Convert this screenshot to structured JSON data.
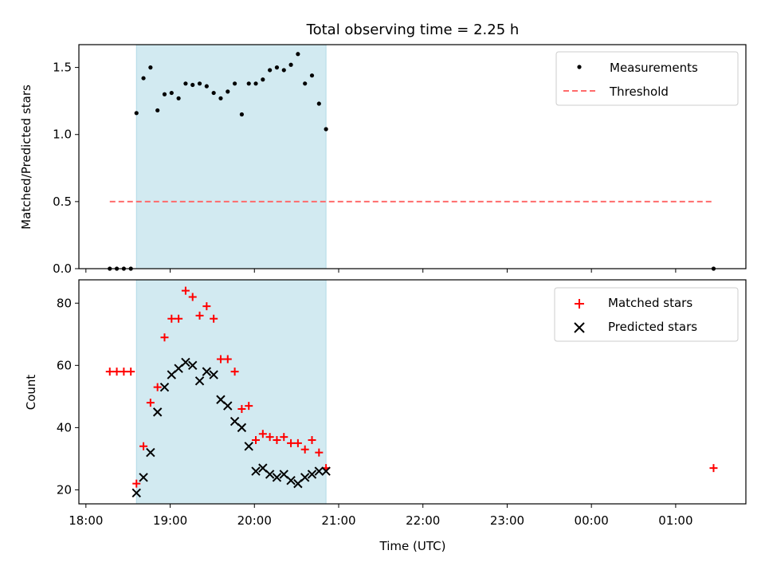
{
  "chart_data": {
    "type": "scatter",
    "title": "Total observing time = 2.25 h",
    "x_unit": "time of day (UTC), may cross midnight",
    "xlabel": "Time (UTC)",
    "x_ticks": [
      "18:00",
      "19:00",
      "20:00",
      "21:00",
      "22:00",
      "23:00",
      "00:00",
      "01:00"
    ],
    "xlim": [
      "17:55",
      "01:50"
    ],
    "observing_window": [
      "18:36",
      "20:51"
    ],
    "observing_window_color": "#add8e6",
    "panels": [
      {
        "id": "ratio",
        "ylabel": "Matched/Predicted stars",
        "ylim": [
          0,
          1.67
        ],
        "y_ticks": [
          "0.0",
          "0.5",
          "1.0",
          "1.5"
        ],
        "y_tick_values": [
          0,
          0.5,
          1.0,
          1.5
        ],
        "legend_placement": "top-right",
        "series": [
          {
            "name": "Measurements",
            "marker": "dot",
            "color": "#000000",
            "points": [
              [
                "18:17",
                0.0
              ],
              [
                "18:22",
                0.0
              ],
              [
                "18:27",
                0.0
              ],
              [
                "18:32",
                0.0
              ],
              [
                "18:36",
                1.16
              ],
              [
                "18:41",
                1.42
              ],
              [
                "18:46",
                1.5
              ],
              [
                "18:51",
                1.18
              ],
              [
                "18:56",
                1.3
              ],
              [
                "19:01",
                1.31
              ],
              [
                "19:06",
                1.27
              ],
              [
                "19:11",
                1.38
              ],
              [
                "19:16",
                1.37
              ],
              [
                "19:21",
                1.38
              ],
              [
                "19:26",
                1.36
              ],
              [
                "19:31",
                1.31
              ],
              [
                "19:36",
                1.27
              ],
              [
                "19:41",
                1.32
              ],
              [
                "19:46",
                1.38
              ],
              [
                "19:51",
                1.15
              ],
              [
                "19:56",
                1.38
              ],
              [
                "20:01",
                1.38
              ],
              [
                "20:06",
                1.41
              ],
              [
                "20:11",
                1.48
              ],
              [
                "20:16",
                1.5
              ],
              [
                "20:21",
                1.48
              ],
              [
                "20:26",
                1.52
              ],
              [
                "20:31",
                1.6
              ],
              [
                "20:36",
                1.38
              ],
              [
                "20:41",
                1.44
              ],
              [
                "20:46",
                1.23
              ],
              [
                "20:51",
                1.04
              ],
              [
                "01:27",
                0.0
              ]
            ]
          },
          {
            "name": "Threshold",
            "marker": "dashed-line",
            "color": "#ff6b6b",
            "points": [
              [
                "18:17",
                0.5
              ],
              [
                "01:27",
                0.5
              ]
            ]
          }
        ]
      },
      {
        "id": "counts",
        "ylabel": "Count",
        "ylim": [
          15.5,
          87.5
        ],
        "y_ticks": [
          "20",
          "40",
          "60",
          "80"
        ],
        "y_tick_values": [
          20,
          40,
          60,
          80
        ],
        "legend_placement": "top-right",
        "series": [
          {
            "name": "Matched stars",
            "marker": "plus",
            "color": "#ff0000",
            "points": [
              [
                "18:17",
                58
              ],
              [
                "18:22",
                58
              ],
              [
                "18:27",
                58
              ],
              [
                "18:32",
                58
              ],
              [
                "18:36",
                22
              ],
              [
                "18:41",
                34
              ],
              [
                "18:46",
                48
              ],
              [
                "18:51",
                53
              ],
              [
                "18:56",
                69
              ],
              [
                "19:01",
                75
              ],
              [
                "19:06",
                75
              ],
              [
                "19:11",
                84
              ],
              [
                "19:16",
                82
              ],
              [
                "19:21",
                76
              ],
              [
                "19:26",
                79
              ],
              [
                "19:31",
                75
              ],
              [
                "19:36",
                62
              ],
              [
                "19:41",
                62
              ],
              [
                "19:46",
                58
              ],
              [
                "19:51",
                46
              ],
              [
                "19:56",
                47
              ],
              [
                "20:01",
                36
              ],
              [
                "20:06",
                38
              ],
              [
                "20:11",
                37
              ],
              [
                "20:16",
                36
              ],
              [
                "20:21",
                37
              ],
              [
                "20:26",
                35
              ],
              [
                "20:31",
                35
              ],
              [
                "20:36",
                33
              ],
              [
                "20:41",
                36
              ],
              [
                "20:46",
                32
              ],
              [
                "20:51",
                27
              ],
              [
                "01:27",
                27
              ]
            ]
          },
          {
            "name": "Predicted stars",
            "marker": "x",
            "color": "#000000",
            "points": [
              [
                "18:36",
                19
              ],
              [
                "18:41",
                24
              ],
              [
                "18:46",
                32
              ],
              [
                "18:51",
                45
              ],
              [
                "18:56",
                53
              ],
              [
                "19:01",
                57
              ],
              [
                "19:06",
                59
              ],
              [
                "19:11",
                61
              ],
              [
                "19:16",
                60
              ],
              [
                "19:21",
                55
              ],
              [
                "19:26",
                58
              ],
              [
                "19:31",
                57
              ],
              [
                "19:36",
                49
              ],
              [
                "19:41",
                47
              ],
              [
                "19:46",
                42
              ],
              [
                "19:51",
                40
              ],
              [
                "19:56",
                34
              ],
              [
                "20:01",
                26
              ],
              [
                "20:06",
                27
              ],
              [
                "20:11",
                25
              ],
              [
                "20:16",
                24
              ],
              [
                "20:21",
                25
              ],
              [
                "20:26",
                23
              ],
              [
                "20:31",
                22
              ],
              [
                "20:36",
                24
              ],
              [
                "20:41",
                25
              ],
              [
                "20:46",
                26
              ],
              [
                "20:51",
                26
              ]
            ]
          }
        ]
      }
    ]
  }
}
